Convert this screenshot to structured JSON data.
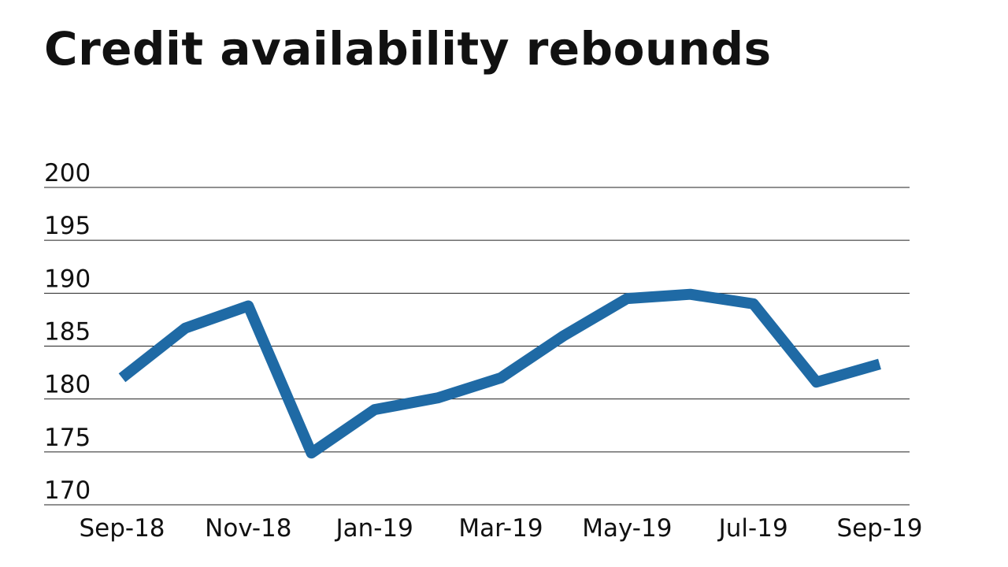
{
  "chart_data": {
    "type": "line",
    "title": "Credit availability rebounds",
    "x": [
      "Sep-18",
      "Oct-18",
      "Nov-18",
      "Dec-18",
      "Jan-19",
      "Feb-19",
      "Mar-19",
      "Apr-19",
      "May-19",
      "Jun-19",
      "Jul-19",
      "Aug-19",
      "Sep-19"
    ],
    "x_tick_labels": [
      "Sep-18",
      "Nov-18",
      "Jan-19",
      "Mar-19",
      "May-19",
      "Jul-19",
      "Sep-19"
    ],
    "series": [
      {
        "values": [
          182.0,
          186.7,
          188.8,
          174.9,
          179.0,
          180.1,
          182.0,
          186.0,
          189.5,
          189.9,
          189.0,
          181.6,
          183.3
        ]
      }
    ],
    "xlabel": "",
    "ylabel": "",
    "ylim": [
      170,
      200
    ],
    "y_ticks": [
      200,
      195,
      190,
      185,
      180,
      175,
      170
    ],
    "grid": true,
    "legend": "none",
    "colors": {
      "line": "#1f6aa5",
      "grid": "#222222"
    }
  }
}
